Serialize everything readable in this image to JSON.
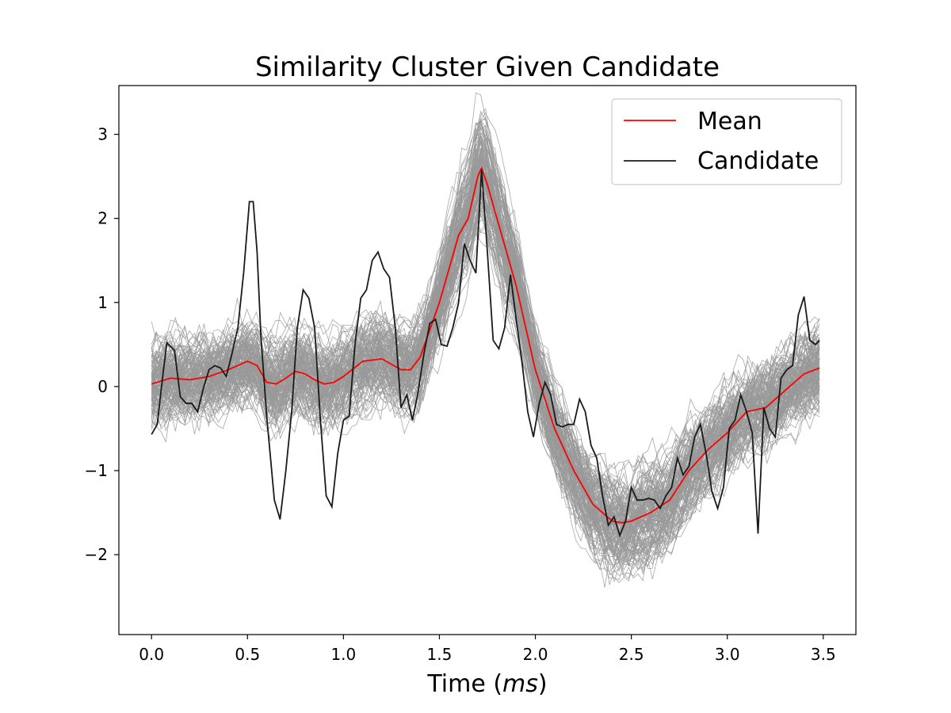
{
  "chart_data": {
    "type": "line",
    "title": "Similarity Cluster Given Candidate",
    "xlabel_prefix": "Time (",
    "xlabel_unit": "ms",
    "xlabel_suffix": ")",
    "ylabel": "",
    "xlim": [
      -0.17,
      3.67
    ],
    "ylim": [
      -2.95,
      3.58
    ],
    "xticks": [
      0.0,
      0.5,
      1.0,
      1.5,
      2.0,
      2.5,
      3.0,
      3.5
    ],
    "xtick_labels": [
      "0.0",
      "0.5",
      "1.0",
      "1.5",
      "2.0",
      "2.5",
      "3.0",
      "3.5"
    ],
    "yticks": [
      -2,
      -1,
      0,
      1,
      2,
      3
    ],
    "ytick_labels": [
      "−2",
      "−1",
      "0",
      "1",
      "2",
      "3"
    ],
    "legend_position": "upper right",
    "colors": {
      "mean": "#ff0000",
      "candidate": "#1a1a1a",
      "cluster": "#999999"
    },
    "mean_x": [
      0.0,
      0.1,
      0.2,
      0.3,
      0.4,
      0.5,
      0.55,
      0.6,
      0.65,
      0.7,
      0.75,
      0.8,
      0.85,
      0.9,
      0.95,
      1.0,
      1.1,
      1.2,
      1.3,
      1.35,
      1.4,
      1.5,
      1.6,
      1.65,
      1.7,
      1.72,
      1.75,
      1.8,
      1.9,
      2.0,
      2.1,
      2.2,
      2.3,
      2.4,
      2.45,
      2.5,
      2.6,
      2.7,
      2.8,
      2.9,
      3.0,
      3.1,
      3.2,
      3.3,
      3.4,
      3.48
    ],
    "mean_y": [
      0.03,
      0.1,
      0.08,
      0.12,
      0.2,
      0.3,
      0.25,
      0.05,
      0.03,
      0.1,
      0.18,
      0.15,
      0.08,
      0.03,
      0.05,
      0.12,
      0.3,
      0.33,
      0.2,
      0.2,
      0.35,
      1.0,
      1.8,
      2.0,
      2.5,
      2.6,
      2.4,
      2.0,
      1.2,
      0.2,
      -0.5,
      -1.0,
      -1.4,
      -1.6,
      -1.62,
      -1.6,
      -1.5,
      -1.35,
      -1.0,
      -0.75,
      -0.55,
      -0.3,
      -0.25,
      -0.05,
      0.15,
      0.22
    ],
    "candidate_x": [
      0.0,
      0.03,
      0.06,
      0.08,
      0.12,
      0.15,
      0.18,
      0.21,
      0.24,
      0.27,
      0.3,
      0.33,
      0.36,
      0.39,
      0.42,
      0.45,
      0.48,
      0.51,
      0.53,
      0.55,
      0.57,
      0.6,
      0.64,
      0.67,
      0.7,
      0.73,
      0.76,
      0.79,
      0.82,
      0.85,
      0.88,
      0.91,
      0.94,
      0.97,
      1.0,
      1.03,
      1.06,
      1.09,
      1.12,
      1.15,
      1.18,
      1.21,
      1.24,
      1.27,
      1.3,
      1.33,
      1.36,
      1.39,
      1.42,
      1.45,
      1.48,
      1.51,
      1.54,
      1.57,
      1.6,
      1.63,
      1.66,
      1.69,
      1.72,
      1.75,
      1.78,
      1.81,
      1.84,
      1.87,
      1.9,
      1.93,
      1.96,
      1.99,
      2.02,
      2.05,
      2.08,
      2.11,
      2.14,
      2.17,
      2.2,
      2.23,
      2.26,
      2.29,
      2.32,
      2.35,
      2.38,
      2.41,
      2.44,
      2.47,
      2.5,
      2.53,
      2.56,
      2.59,
      2.62,
      2.65,
      2.68,
      2.71,
      2.74,
      2.77,
      2.8,
      2.83,
      2.86,
      2.89,
      2.92,
      2.95,
      2.98,
      3.01,
      3.04,
      3.07,
      3.1,
      3.13,
      3.16,
      3.19,
      3.22,
      3.25,
      3.28,
      3.31,
      3.34,
      3.37,
      3.4,
      3.43,
      3.46,
      3.48
    ],
    "candidate_y": [
      -0.57,
      -0.45,
      0.15,
      0.52,
      0.43,
      -0.12,
      -0.2,
      -0.2,
      -0.3,
      -0.02,
      0.2,
      0.25,
      0.22,
      0.12,
      0.4,
      0.7,
      1.35,
      2.2,
      2.2,
      1.6,
      0.6,
      -0.35,
      -1.35,
      -1.58,
      -1.0,
      -0.3,
      0.7,
      1.15,
      1.05,
      0.7,
      -0.4,
      -1.3,
      -1.43,
      -0.8,
      -0.4,
      -0.35,
      0.5,
      1.05,
      1.15,
      1.5,
      1.6,
      1.4,
      1.3,
      0.7,
      -0.25,
      -0.1,
      -0.4,
      -0.05,
      0.4,
      0.75,
      0.8,
      0.5,
      0.48,
      0.7,
      1.0,
      1.7,
      1.5,
      1.35,
      2.58,
      1.6,
      0.55,
      0.45,
      0.7,
      1.33,
      0.8,
      0.3,
      -0.3,
      -0.6,
      -0.2,
      0.05,
      -0.1,
      -0.45,
      -0.48,
      -0.45,
      -0.45,
      -0.15,
      -0.3,
      -0.7,
      -0.85,
      -1.3,
      -1.65,
      -1.55,
      -1.77,
      -1.6,
      -1.2,
      -1.35,
      -1.35,
      -1.33,
      -1.35,
      -1.45,
      -1.3,
      -1.2,
      -0.85,
      -1.05,
      -0.95,
      -0.6,
      -0.45,
      -0.8,
      -1.25,
      -1.45,
      -1.2,
      -0.5,
      -0.4,
      -0.1,
      -0.3,
      -0.55,
      -1.75,
      -0.25,
      -0.5,
      -0.6,
      0.1,
      0.2,
      0.25,
      0.85,
      1.07,
      0.55,
      0.5,
      0.55
    ],
    "cluster_description_free": true,
    "legend": [
      {
        "label": "Mean",
        "key": "mean"
      },
      {
        "label": "Candidate",
        "key": "candidate"
      }
    ]
  }
}
